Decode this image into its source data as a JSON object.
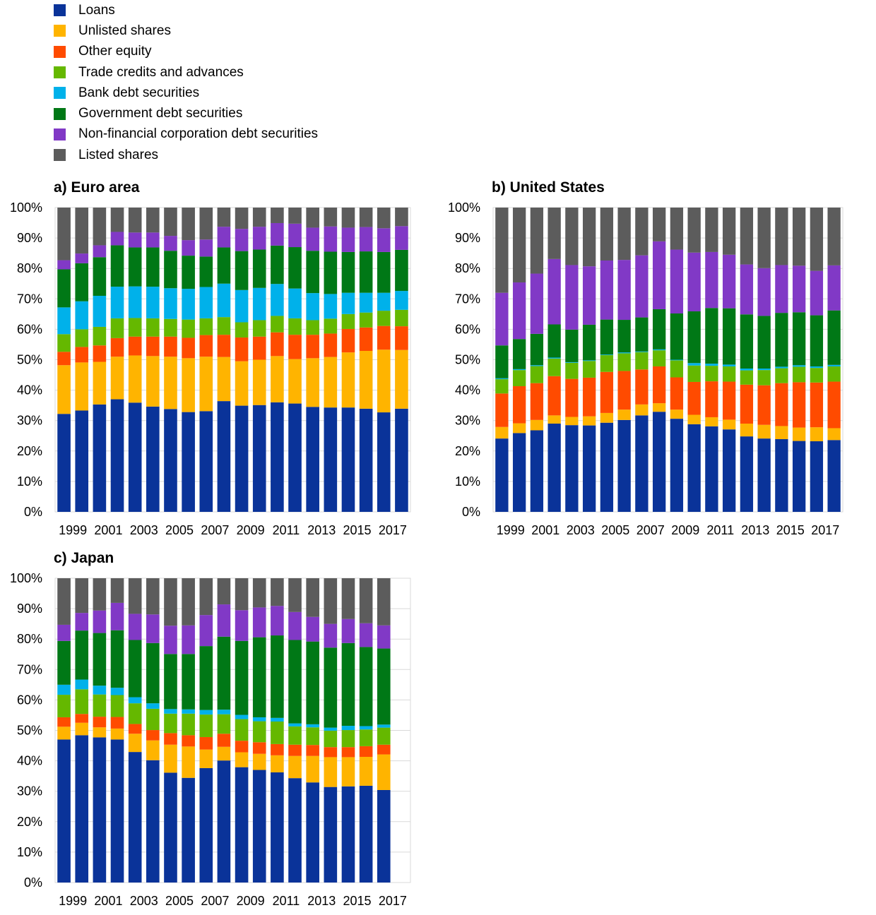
{
  "colors": {
    "Loans": "#0a3399",
    "Unlisted shares": "#ffb400",
    "Other equity": "#ff4b00",
    "Trade credits and advances": "#65b800",
    "Bank debt securities": "#00b1ea",
    "Government debt securities": "#007816",
    "Non-financial corporation debt securities": "#8139c6",
    "Listed shares": "#5c5c5c"
  },
  "chart_data": [
    {
      "type": "bar",
      "stacked": true,
      "title": "a) Euro area",
      "categories": [
        "1999",
        "2000",
        "2001",
        "2002",
        "2003",
        "2004",
        "2005",
        "2006",
        "2007",
        "2008",
        "2009",
        "2010",
        "2011",
        "2012",
        "2013",
        "2014",
        "2015",
        "2016",
        "2017",
        "2018"
      ],
      "x_tick_labels": [
        "1999",
        "2001",
        "2003",
        "2005",
        "2007",
        "2009",
        "2011",
        "2013",
        "2015",
        "2017"
      ],
      "y_tick_labels": [
        "0%",
        "10%",
        "20%",
        "30%",
        "40%",
        "50%",
        "60%",
        "70%",
        "80%",
        "90%",
        "100%"
      ],
      "ylim": [
        0,
        100
      ],
      "legend": [
        "Loans",
        "Unlisted shares",
        "Other equity",
        "Trade credits and advances",
        "Bank debt securities",
        "Government debt securities",
        "Non-financial corporation debt securities",
        "Listed shares"
      ],
      "legend_position": "top-left",
      "series": [
        {
          "name": "Loans",
          "values": [
            32.2,
            33.3,
            35.3,
            37.0,
            35.9,
            34.6,
            33.8,
            32.8,
            33.1,
            36.4,
            34.9,
            35.1,
            36.0,
            35.6,
            34.5,
            34.3,
            34.3,
            33.9,
            32.7,
            33.9
          ]
        },
        {
          "name": "Unlisted shares",
          "values": [
            16.0,
            15.8,
            14.0,
            14.0,
            15.5,
            16.6,
            17.2,
            17.7,
            17.9,
            14.5,
            14.6,
            14.9,
            15.2,
            14.6,
            16.0,
            16.6,
            18.1,
            19.0,
            20.6,
            19.3
          ]
        },
        {
          "name": "Other equity",
          "values": [
            4.4,
            5.1,
            5.4,
            6.1,
            6.2,
            6.4,
            6.6,
            6.7,
            7.1,
            7.3,
            7.8,
            7.6,
            7.8,
            8.0,
            7.7,
            7.7,
            7.7,
            7.7,
            7.8,
            7.8
          ]
        },
        {
          "name": "Trade credits and advances",
          "values": [
            5.8,
            5.8,
            6.1,
            6.5,
            6.1,
            6.0,
            5.8,
            6.0,
            5.5,
            5.8,
            5.0,
            5.4,
            5.4,
            5.4,
            4.8,
            4.9,
            4.9,
            4.9,
            5.0,
            5.4
          ]
        },
        {
          "name": "Bank debt securities",
          "values": [
            8.8,
            9.2,
            10.2,
            10.4,
            10.4,
            10.4,
            10.1,
            10.1,
            10.3,
            11.0,
            10.6,
            10.6,
            10.5,
            9.8,
            8.9,
            8.1,
            7.0,
            6.5,
            5.9,
            6.2
          ]
        },
        {
          "name": "Government debt securities",
          "values": [
            12.5,
            12.5,
            12.7,
            13.6,
            12.8,
            12.9,
            12.3,
            10.9,
            10.0,
            11.9,
            12.8,
            12.6,
            12.6,
            13.6,
            13.9,
            13.9,
            13.4,
            13.6,
            13.4,
            13.5
          ]
        },
        {
          "name": "Non-financial corporation debt securities",
          "values": [
            3.0,
            3.2,
            3.9,
            4.4,
            4.9,
            4.9,
            4.9,
            5.1,
            5.6,
            6.8,
            7.3,
            7.5,
            7.4,
            7.7,
            7.6,
            8.3,
            8.0,
            8.0,
            7.8,
            7.8
          ]
        },
        {
          "name": "Listed shares",
          "values": [
            17.3,
            15.1,
            12.4,
            8.0,
            8.2,
            8.2,
            9.3,
            10.7,
            10.5,
            6.3,
            7.0,
            6.3,
            5.1,
            5.3,
            6.6,
            6.2,
            6.6,
            6.4,
            6.8,
            6.1
          ]
        }
      ]
    },
    {
      "type": "bar",
      "stacked": true,
      "title": "b) United States",
      "categories": [
        "1999",
        "2000",
        "2001",
        "2002",
        "2003",
        "2004",
        "2005",
        "2006",
        "2007",
        "2008",
        "2009",
        "2010",
        "2011",
        "2012",
        "2013",
        "2014",
        "2015",
        "2016",
        "2017",
        "2018"
      ],
      "x_tick_labels": [
        "1999",
        "2001",
        "2003",
        "2005",
        "2007",
        "2009",
        "2011",
        "2013",
        "2015",
        "2017"
      ],
      "y_tick_labels": [
        "0%",
        "10%",
        "20%",
        "30%",
        "40%",
        "50%",
        "60%",
        "70%",
        "80%",
        "90%",
        "100%"
      ],
      "ylim": [
        0,
        100
      ],
      "series": [
        {
          "name": "Loans",
          "values": [
            24.1,
            25.9,
            26.8,
            29.0,
            28.5,
            28.4,
            29.3,
            30.2,
            31.7,
            32.9,
            30.6,
            28.8,
            28.1,
            27.1,
            24.8,
            24.1,
            23.9,
            23.3,
            23.2,
            23.6
          ]
        },
        {
          "name": "Unlisted shares",
          "values": [
            3.8,
            3.2,
            3.4,
            2.7,
            2.7,
            3.0,
            3.2,
            3.4,
            3.6,
            2.8,
            3.0,
            3.1,
            3.0,
            3.2,
            4.2,
            4.5,
            4.3,
            4.4,
            4.6,
            3.9
          ]
        },
        {
          "name": "Other equity",
          "values": [
            11.0,
            12.2,
            12.1,
            12.9,
            12.5,
            12.7,
            13.5,
            12.7,
            11.5,
            12.1,
            10.6,
            10.8,
            11.8,
            12.5,
            12.8,
            13.0,
            14.1,
            14.9,
            14.7,
            15.3
          ]
        },
        {
          "name": "Trade credits and advances",
          "values": [
            4.7,
            5.3,
            5.6,
            5.8,
            5.3,
            5.5,
            5.5,
            5.8,
            5.7,
            5.3,
            5.6,
            5.4,
            5.1,
            5.0,
            4.7,
            5.0,
            4.9,
            5.1,
            4.8,
            5.0
          ]
        },
        {
          "name": "Bank debt securities",
          "values": [
            0.3,
            0.3,
            0.3,
            0.3,
            0.2,
            0.2,
            0.2,
            0.3,
            0.2,
            0.3,
            0.2,
            0.8,
            0.7,
            0.6,
            0.6,
            0.5,
            0.5,
            0.5,
            0.5,
            0.5
          ]
        },
        {
          "name": "Government debt securities",
          "values": [
            10.8,
            9.9,
            10.3,
            10.9,
            10.7,
            11.7,
            11.5,
            10.7,
            11.2,
            13.2,
            15.2,
            17.0,
            18.3,
            18.5,
            17.8,
            17.3,
            17.7,
            17.4,
            16.8,
            17.9
          ]
        },
        {
          "name": "Non-financial corporation debt securities",
          "values": [
            17.3,
            18.6,
            19.8,
            21.5,
            21.2,
            19.2,
            19.4,
            19.7,
            20.4,
            22.3,
            21.0,
            19.3,
            18.4,
            17.6,
            16.4,
            15.7,
            15.7,
            15.3,
            14.6,
            14.8
          ]
        },
        {
          "name": "Listed shares",
          "values": [
            28.0,
            24.6,
            21.7,
            16.9,
            18.9,
            19.3,
            17.4,
            17.2,
            15.7,
            11.1,
            13.8,
            14.8,
            14.6,
            15.5,
            18.7,
            19.9,
            18.9,
            19.1,
            20.8,
            19.0
          ]
        }
      ]
    },
    {
      "type": "bar",
      "stacked": true,
      "title": "c) Japan",
      "categories": [
        "1999",
        "2000",
        "2001",
        "2002",
        "2003",
        "2004",
        "2005",
        "2006",
        "2007",
        "2008",
        "2009",
        "2010",
        "2011",
        "2012",
        "2013",
        "2014",
        "2015",
        "2016",
        "2017",
        "2018"
      ],
      "x_tick_labels": [
        "1999",
        "2001",
        "2003",
        "2005",
        "2007",
        "2009",
        "2011",
        "2013",
        "2015",
        "2017"
      ],
      "y_tick_labels": [
        "0%",
        "10%",
        "20%",
        "30%",
        "40%",
        "50%",
        "60%",
        "70%",
        "80%",
        "90%",
        "100%"
      ],
      "ylim": [
        0,
        100
      ],
      "series": [
        {
          "name": "Loans",
          "values": [
            47.0,
            48.4,
            47.7,
            47.0,
            42.9,
            40.2,
            36.1,
            34.4,
            37.6,
            40.1,
            37.9,
            37.0,
            36.2,
            34.3,
            32.9,
            31.4,
            31.6,
            31.8,
            30.4,
            null
          ]
        },
        {
          "name": "Unlisted shares",
          "values": [
            4.2,
            4.1,
            3.3,
            3.6,
            6.0,
            6.5,
            9.2,
            10.3,
            6.1,
            4.5,
            4.9,
            5.3,
            5.6,
            7.3,
            8.7,
            9.8,
            9.6,
            9.5,
            11.7,
            null
          ]
        },
        {
          "name": "Other equity",
          "values": [
            3.1,
            2.9,
            3.5,
            3.8,
            3.2,
            3.4,
            3.8,
            3.7,
            4.1,
            4.3,
            3.8,
            3.8,
            3.7,
            3.7,
            3.6,
            3.3,
            3.3,
            3.5,
            3.2,
            null
          ]
        },
        {
          "name": "Trade credits and advances",
          "values": [
            7.4,
            8.1,
            7.3,
            7.2,
            6.8,
            7.0,
            6.4,
            7.1,
            7.4,
            6.4,
            7.1,
            6.9,
            7.4,
            6.0,
            5.8,
            5.4,
            5.6,
            5.5,
            5.6,
            null
          ]
        },
        {
          "name": "Bank debt securities",
          "values": [
            3.3,
            3.2,
            2.9,
            2.4,
            2.0,
            1.8,
            1.5,
            1.4,
            1.5,
            1.5,
            1.4,
            1.3,
            1.2,
            1.0,
            1.0,
            1.0,
            1.4,
            1.1,
            1.0,
            null
          ]
        },
        {
          "name": "Government debt securities",
          "values": [
            14.4,
            16.1,
            17.3,
            18.9,
            18.8,
            19.8,
            18.1,
            18.2,
            21.0,
            24.0,
            24.3,
            26.3,
            27.1,
            27.4,
            27.2,
            26.3,
            27.2,
            26.0,
            25.0,
            null
          ]
        },
        {
          "name": "Non-financial corporation debt securities",
          "values": [
            5.3,
            5.8,
            7.4,
            9.0,
            8.6,
            9.4,
            9.3,
            9.4,
            10.2,
            10.6,
            10.1,
            9.8,
            9.7,
            9.2,
            8.1,
            7.8,
            7.9,
            7.8,
            7.6,
            null
          ]
        },
        {
          "name": "Listed shares",
          "values": [
            15.3,
            11.4,
            10.6,
            8.1,
            11.7,
            11.9,
            15.6,
            15.5,
            12.1,
            8.6,
            10.5,
            9.6,
            9.1,
            11.1,
            12.7,
            15.0,
            13.4,
            14.8,
            15.5,
            null
          ]
        }
      ]
    }
  ]
}
